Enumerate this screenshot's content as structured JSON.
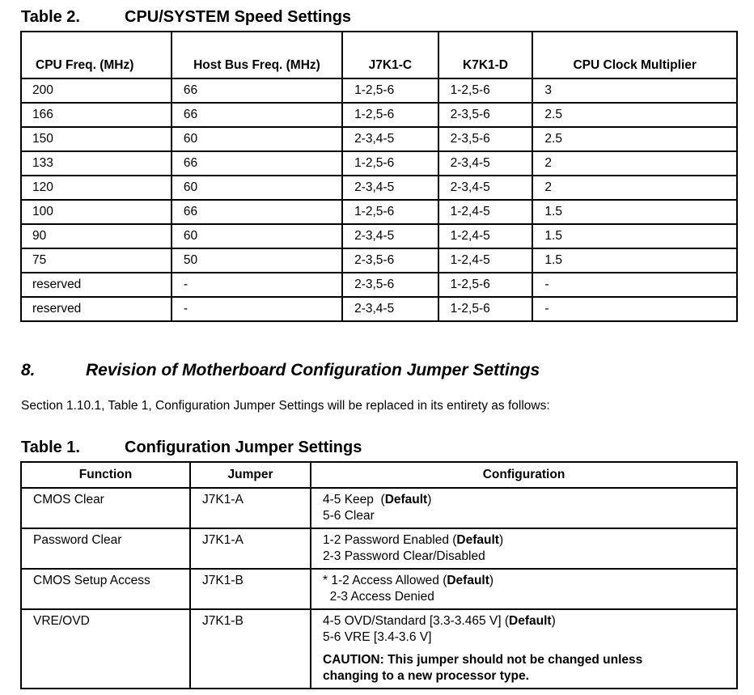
{
  "table2": {
    "number": "Table 2.",
    "title": "CPU/SYSTEM Speed Settings",
    "headers": [
      "CPU Freq. (MHz)",
      "Host Bus Freq. (MHz)",
      "J7K1-C",
      "K7K1-D",
      "CPU Clock Multiplier"
    ],
    "rows": [
      [
        "200",
        "66",
        "1-2,5-6",
        "1-2,5-6",
        "3"
      ],
      [
        "166",
        "66",
        "1-2,5-6",
        "2-3,5-6",
        "2.5"
      ],
      [
        "150",
        "60",
        "2-3,4-5",
        "2-3,5-6",
        "2.5"
      ],
      [
        "133",
        "66",
        "1-2,5-6",
        "2-3,4-5",
        "2"
      ],
      [
        "120",
        "60",
        "2-3,4-5",
        "2-3,4-5",
        "2"
      ],
      [
        "100",
        "66",
        "1-2,5-6",
        "1-2,4-5",
        "1.5"
      ],
      [
        "90",
        "60",
        "2-3,4-5",
        "1-2,4-5",
        "1.5"
      ],
      [
        "75",
        "50",
        "2-3,5-6",
        "1-2,4-5",
        "1.5"
      ],
      [
        "reserved",
        "-",
        "2-3,5-6",
        "1-2,5-6",
        "-"
      ],
      [
        "reserved",
        "-",
        "2-3,4-5",
        "1-2,5-6",
        "-"
      ]
    ]
  },
  "section": {
    "number": "8.",
    "title": "Revision of Motherboard Configuration Jumper Settings",
    "paragraph": "Section 1.10.1, Table 1, Configuration Jumper Settings will be replaced in its entirety as follows:"
  },
  "table1": {
    "number": "Table 1.",
    "title": "Configuration Jumper Settings",
    "headers": [
      "Function",
      "Jumper",
      "Configuration"
    ],
    "rows": [
      {
        "function": "CMOS Clear",
        "jumper": "J7K1-A",
        "lines": [
          {
            "text": "4-5 Keep  (",
            "bold": "Default",
            "end": ")"
          },
          {
            "text": "5-6 Clear"
          }
        ]
      },
      {
        "function": "Password Clear",
        "jumper": "J7K1-A",
        "lines": [
          {
            "text": "1-2 Password Enabled (",
            "bold": "Default",
            "end": ")"
          },
          {
            "text": "2-3 Password Clear/Disabled"
          }
        ]
      },
      {
        "function": "CMOS Setup Access",
        "jumper": "J7K1-B",
        "lines": [
          {
            "text": "* 1-2 Access Allowed (",
            "bold": "Default",
            "end": ")"
          },
          {
            "text": "  2-3 Access Denied"
          }
        ]
      },
      {
        "function": "VRE/OVD",
        "jumper": "J7K1-B",
        "lines": [
          {
            "text": "4-5 OVD/Standard [3.3-3.465 V] (",
            "bold": "Default",
            "end": ")"
          },
          {
            "text": "5-6 VRE [3.4-3.6 V]"
          }
        ],
        "caution": "CAUTION:  This jumper should not be changed unless changing to a new processor type."
      }
    ]
  }
}
